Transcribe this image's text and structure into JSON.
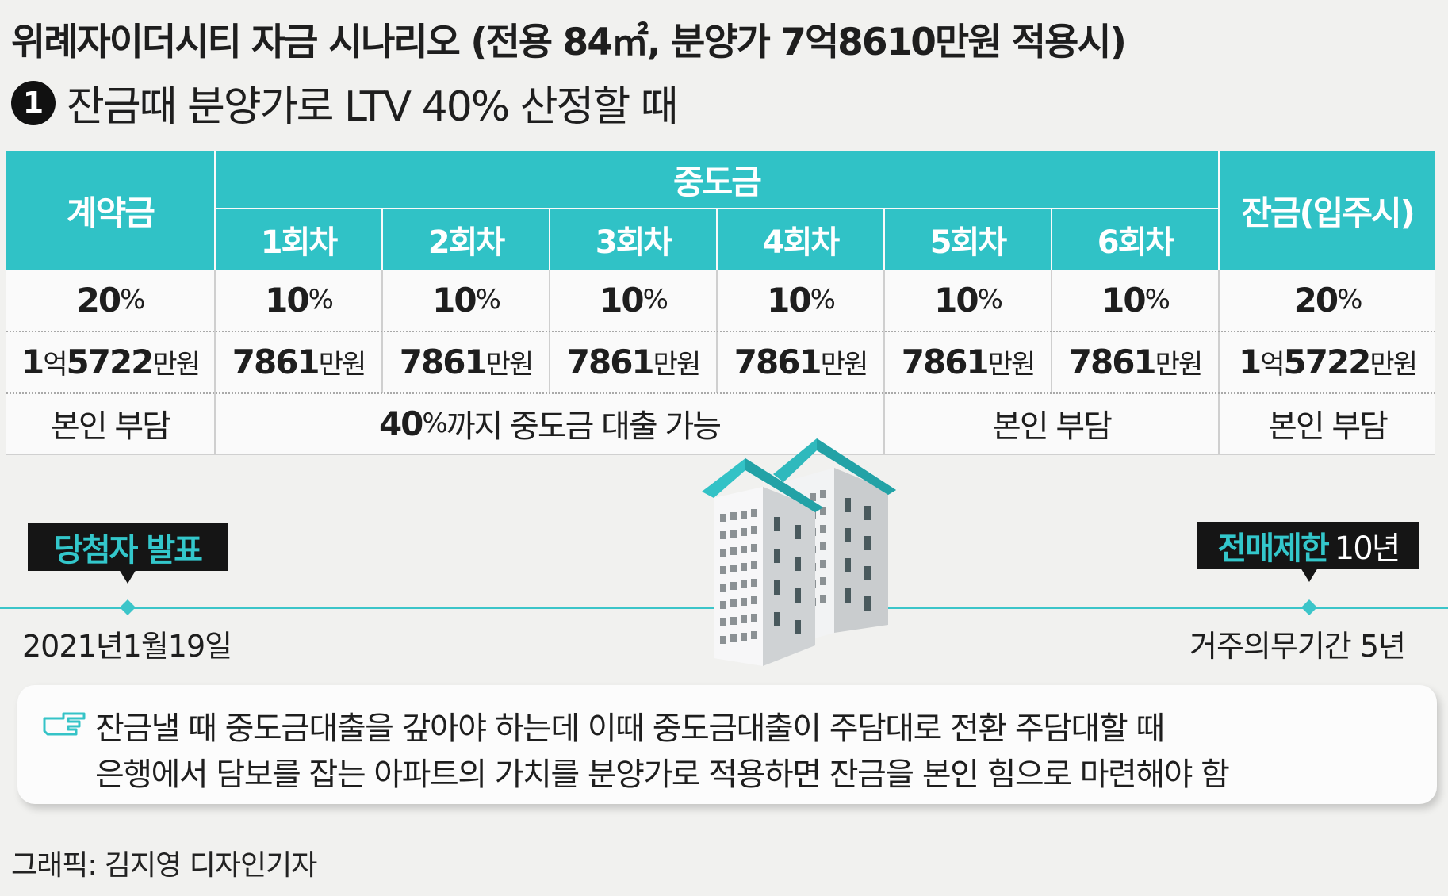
{
  "title": "위례자이더시티 자금 시나리오 (전용 84㎡, 분양가 7억8610만원 적용시)",
  "subtitle": {
    "number": "1",
    "text": "잔금때 분양가로 LTV 40% 산정할 때"
  },
  "table": {
    "contract_header": "계약금",
    "middle_header": "중도금",
    "balance_header": "잔금(입주시)",
    "rounds": [
      "1회차",
      "2회차",
      "3회차",
      "4회차",
      "5회차",
      "6회차"
    ],
    "contract": {
      "pct": "20",
      "amount_prefix": "1",
      "amount_eok": "억",
      "amount_num": "5722"
    },
    "middle_pct": "10",
    "middle_amount": "7861",
    "balance": {
      "pct": "20",
      "amount_prefix": "1",
      "amount_eok": "억",
      "amount_num": "5722"
    },
    "pct_unit": "%",
    "amount_unit": "만원",
    "contract_note": "본인 부담",
    "loan_note_pct": "40",
    "loan_note_text": "까지 중도금 대출 가능",
    "self_note_middle": "본인 부담",
    "balance_note": "본인 부담"
  },
  "timeline": {
    "left_tag": "당첨자 발표",
    "left_date": "2021년1월19일",
    "right_tag": "전매제한",
    "right_tag_value": "10년",
    "right_date": "거주의무기간 5년"
  },
  "note": {
    "icon": "pointing-hand-icon",
    "line1": "잔금낼 때 중도금대출을 갚아야 하는데 이때 중도금대출이 주담대로 전환 주담대할 때",
    "line2": "은행에서 담보를 잡는 아파트의 가치를 분양가로 적용하면 잔금을 본인 힘으로 마련해야 함"
  },
  "credit": "그래픽: 김지영 디자인기자",
  "colors": {
    "accent": "#30c2c6",
    "dark": "#151515"
  }
}
